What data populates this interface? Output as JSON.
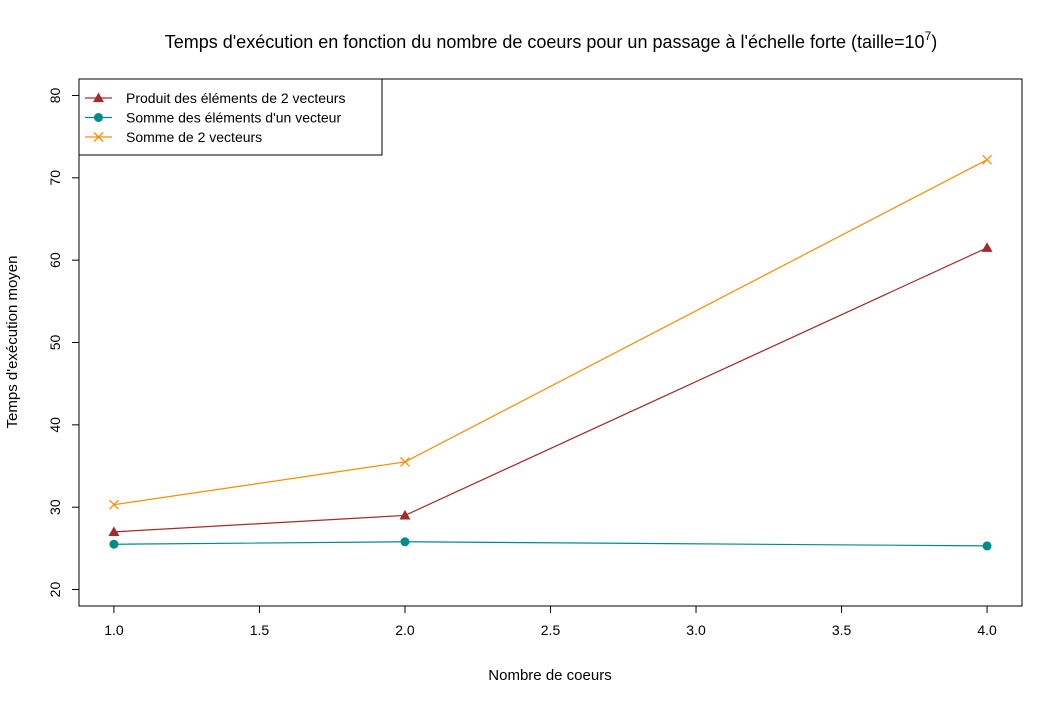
{
  "chart_data": {
    "type": "line",
    "title": "Temps d'exécution en fonction du nombre de coeurs pour un passage à l'échelle forte (taille=10",
    "title_superscript": "7",
    "title_close": ")",
    "xlabel": "Nombre de coeurs",
    "ylabel": "Temps d'exécution moyen",
    "xlim": [
      0.88,
      4.12
    ],
    "ylim": [
      18,
      82
    ],
    "x_ticks": [
      1.0,
      1.5,
      2.0,
      2.5,
      3.0,
      3.5,
      4.0
    ],
    "x_tick_labels": [
      "1.0",
      "1.5",
      "2.0",
      "2.5",
      "3.0",
      "3.5",
      "4.0"
    ],
    "y_ticks": [
      20,
      30,
      40,
      50,
      60,
      70,
      80
    ],
    "y_tick_labels": [
      "20",
      "30",
      "40",
      "50",
      "60",
      "70",
      "80"
    ],
    "grid": false,
    "legend_position": "top-left",
    "x": [
      1,
      2,
      4
    ],
    "series": [
      {
        "name": "Produit des éléments de 2 vecteurs",
        "values": [
          27.0,
          29.0,
          61.5
        ],
        "color": "#a52a2a",
        "marker": "triangle"
      },
      {
        "name": "Somme des éléments d'un vecteur",
        "values": [
          25.5,
          25.8,
          25.3
        ],
        "color": "#008b8b",
        "marker": "circle"
      },
      {
        "name": "Somme de 2 vecteurs",
        "values": [
          30.3,
          35.5,
          72.2
        ],
        "color": "#ff8c00",
        "marker": "cross"
      }
    ]
  }
}
